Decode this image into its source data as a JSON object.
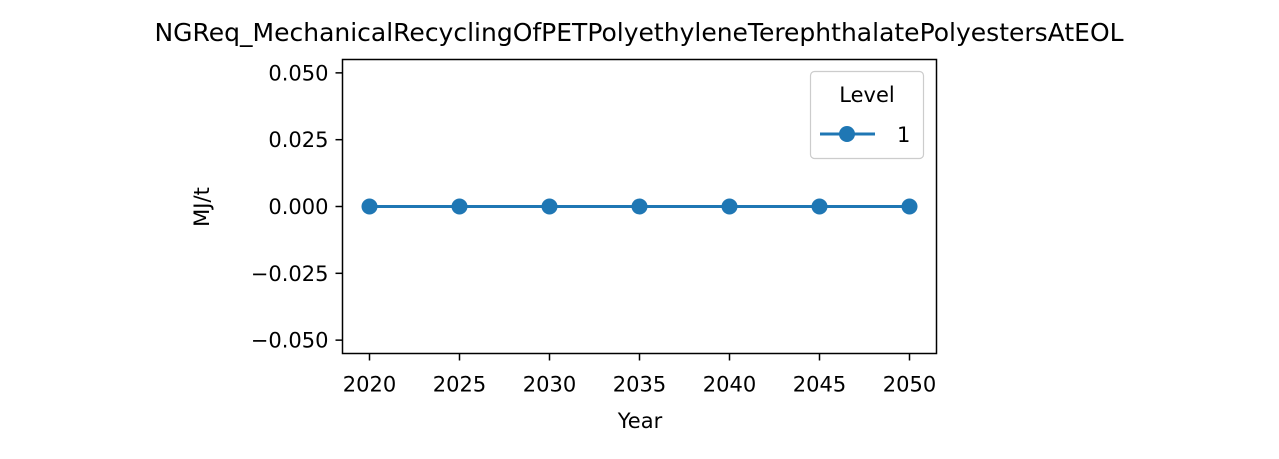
{
  "chart_data": {
    "type": "line",
    "title": "NGReq_MechanicalRecyclingOfPETPolyethyleneTerephthalatePolyestersAtEOL",
    "xlabel": "Year",
    "ylabel": "MJ/t",
    "x": [
      2020,
      2025,
      2030,
      2035,
      2040,
      2045,
      2050
    ],
    "x_ticks": [
      "2020",
      "2025",
      "2030",
      "2035",
      "2040",
      "2045",
      "2050"
    ],
    "y_ticks": [
      "0.050",
      "0.025",
      "0.000",
      "−0.025",
      "−0.050"
    ],
    "y_tick_values": [
      0.05,
      0.025,
      0.0,
      -0.025,
      -0.05
    ],
    "xlim": [
      2018.5,
      2051.5
    ],
    "ylim": [
      -0.055,
      0.055
    ],
    "grid": false,
    "legend": {
      "title": "Level",
      "placement": "upper right"
    },
    "series": [
      {
        "name": "1",
        "color": "#1f77b4",
        "marker": "circle",
        "values": [
          0,
          0,
          0,
          0,
          0,
          0,
          0
        ]
      }
    ]
  }
}
